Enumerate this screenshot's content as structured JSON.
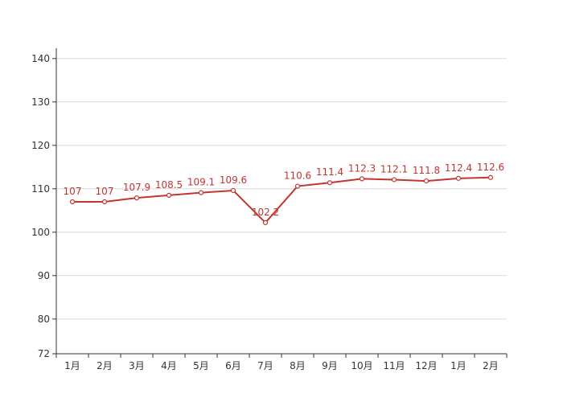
{
  "chart_data": {
    "type": "line",
    "categories": [
      "1月",
      "2月",
      "3月",
      "4月",
      "5月",
      "6月",
      "7月",
      "8月",
      "9月",
      "10月",
      "11月",
      "12月",
      "1月",
      "2月"
    ],
    "series": [
      {
        "values": [
          107,
          107,
          107.9,
          108.5,
          109.1,
          109.6,
          102.2,
          110.6,
          111.4,
          112.3,
          112.1,
          111.8,
          112.4,
          112.6
        ],
        "color": "#c23531",
        "data_labels": [
          "107",
          "107",
          "107.9",
          "108.5",
          "109.1",
          "109.6",
          "102.2",
          "110.6",
          "111.4",
          "112.3",
          "112.1",
          "111.8",
          "112.4",
          "112.6"
        ]
      }
    ],
    "y_ticks": [
      72,
      80,
      90,
      100,
      110,
      120,
      130,
      140
    ],
    "y_tick_labels": [
      "72",
      "80",
      "90",
      "100",
      "110",
      "120",
      "130",
      "140"
    ],
    "ylim": [
      72,
      142
    ],
    "grid": true,
    "legend": "none",
    "marker": "hollow-circle"
  }
}
